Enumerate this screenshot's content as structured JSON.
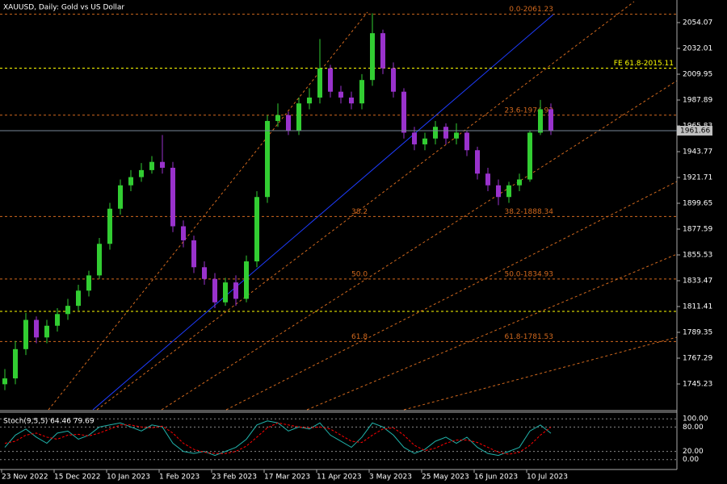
{
  "chart_data": [
    {
      "type": "candlestick",
      "title": "XAUUSD, Daily:  Gold vs US Dollar",
      "categories": [
        "23 Nov 2022",
        null,
        null,
        null,
        null,
        "15 Dec 2022",
        null,
        null,
        null,
        null,
        "10 Jan 2023",
        null,
        null,
        null,
        null,
        "1 Feb 2023",
        null,
        null,
        null,
        null,
        "23 Feb 2023",
        null,
        null,
        null,
        null,
        "17 Mar 2023",
        null,
        null,
        null,
        null,
        "11 Apr 2023",
        null,
        null,
        null,
        null,
        "3 May 2023",
        null,
        null,
        null,
        null,
        "25 May 2023",
        null,
        null,
        null,
        null,
        "16 Jun 2023",
        null,
        null,
        null,
        null,
        "10 Jul 2023",
        null,
        null
      ],
      "open": [
        1745,
        1750,
        1775,
        1800,
        1785,
        1795,
        1805,
        1812,
        1825,
        1838,
        1865,
        1895,
        1915,
        1922,
        1928,
        1935,
        1930,
        1880,
        1868,
        1845,
        1835,
        1815,
        1832,
        1818,
        1850,
        1905,
        1970,
        1975,
        1962,
        1985,
        1990,
        2015,
        1995,
        1990,
        1985,
        2005,
        2045,
        2015,
        1995,
        1960,
        1950,
        1955,
        1965,
        1955,
        1960,
        1945,
        1925,
        1915,
        1905,
        1915,
        1920,
        1960,
        1980
      ],
      "high": [
        1758,
        1782,
        1806,
        1803,
        1800,
        1810,
        1818,
        1830,
        1842,
        1870,
        1900,
        1920,
        1928,
        1934,
        1940,
        1958,
        1935,
        1885,
        1872,
        1850,
        1840,
        1836,
        1838,
        1855,
        1910,
        1975,
        1985,
        1978,
        1990,
        1998,
        2040,
        2018,
        2000,
        1995,
        2010,
        2062,
        2048,
        2020,
        1998,
        1965,
        1960,
        1970,
        1968,
        1968,
        1962,
        1948,
        1930,
        1920,
        1918,
        1925,
        1962,
        1988,
        1985
      ],
      "low": [
        1740,
        1745,
        1770,
        1780,
        1780,
        1790,
        1800,
        1808,
        1820,
        1835,
        1860,
        1890,
        1910,
        1918,
        1925,
        1925,
        1875,
        1862,
        1840,
        1830,
        1810,
        1812,
        1812,
        1815,
        1845,
        1900,
        1965,
        1958,
        1958,
        1980,
        1985,
        1990,
        1985,
        1980,
        1980,
        2000,
        2010,
        1990,
        1955,
        1945,
        1945,
        1950,
        1950,
        1950,
        1940,
        1920,
        1910,
        1898,
        1900,
        1910,
        1918,
        1958,
        1958
      ],
      "close": [
        1750,
        1775,
        1800,
        1785,
        1795,
        1805,
        1812,
        1825,
        1838,
        1865,
        1895,
        1915,
        1922,
        1928,
        1935,
        1930,
        1880,
        1868,
        1845,
        1835,
        1815,
        1832,
        1818,
        1850,
        1905,
        1970,
        1975,
        1962,
        1985,
        1990,
        2015,
        1995,
        1990,
        1985,
        2005,
        2045,
        2015,
        1995,
        1960,
        1950,
        1955,
        1965,
        1955,
        1960,
        1945,
        1925,
        1915,
        1905,
        1915,
        1920,
        1960,
        1980,
        1961.66
      ],
      "up_color": "#32cd32",
      "down_color": "#9932cc",
      "ylim": [
        1723.17,
        2073.37
      ],
      "yticks": [
        2054.07,
        2032.01,
        2009.95,
        1987.89,
        1965.83,
        1943.77,
        1921.71,
        1899.65,
        1877.59,
        1855.53,
        1833.47,
        1811.41,
        1789.35,
        1767.29,
        1745.23
      ],
      "last_price": 1961.66,
      "levels": [
        {
          "label": "0.0-2061.23",
          "value": 2061.23,
          "color": "#d2691e"
        },
        {
          "label": "FE 61.8-2015.11",
          "value": 2015.11,
          "color": "#ffff00"
        },
        {
          "label": "23.6-1974.92",
          "value": 1974.92,
          "color": "#d2691e"
        },
        {
          "tag": "38.2",
          "label": "38.2-1888.34",
          "value": 1888.34,
          "color": "#d2691e"
        },
        {
          "tag": "50.0",
          "label": "50.0-1834.93",
          "value": 1834.93,
          "color": "#d2691e"
        },
        {
          "tag": "61.8",
          "label": "61.8-1781.53",
          "value": 1781.53,
          "color": "#d2691e"
        }
      ]
    },
    {
      "type": "line",
      "title": "Stoch(9,5,5) 64.46 79.69",
      "series": [
        {
          "color": "#20b2aa",
          "values": [
            30,
            60,
            75,
            55,
            40,
            65,
            70,
            50,
            60,
            80,
            85,
            90,
            80,
            70,
            85,
            80,
            40,
            20,
            15,
            20,
            10,
            20,
            30,
            50,
            85,
            95,
            90,
            70,
            80,
            75,
            90,
            60,
            45,
            30,
            55,
            90,
            80,
            60,
            30,
            15,
            25,
            45,
            55,
            40,
            55,
            30,
            15,
            10,
            20,
            30,
            70,
            85,
            64.46
          ]
        },
        {
          "color": "#ff0000",
          "values": [
            40,
            45,
            60,
            65,
            55,
            50,
            60,
            62,
            58,
            65,
            75,
            85,
            85,
            80,
            78,
            82,
            65,
            40,
            25,
            18,
            15,
            15,
            20,
            33,
            55,
            78,
            90,
            85,
            80,
            78,
            80,
            75,
            60,
            45,
            42,
            60,
            75,
            78,
            60,
            35,
            22,
            28,
            40,
            48,
            48,
            42,
            30,
            18,
            13,
            18,
            35,
            60,
            79.69
          ]
        }
      ],
      "ylim": [
        -22.4,
        116.3
      ],
      "yticks": [
        {
          "value": 100,
          "label": "100.00"
        },
        {
          "value": 80,
          "label": "80.00"
        },
        {
          "value": 20,
          "label": "20.00"
        },
        {
          "value": 0,
          "label": "0.00"
        }
      ]
    }
  ]
}
